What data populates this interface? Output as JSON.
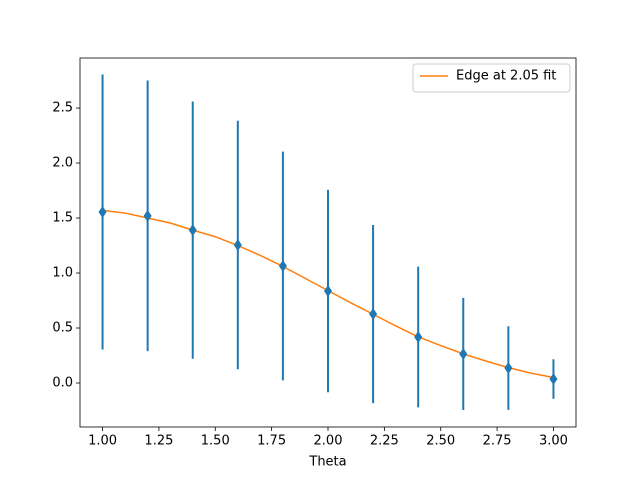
{
  "chart_data": {
    "type": "errorbar",
    "xlabel": "Theta",
    "xlim": [
      0.9,
      3.1
    ],
    "ylim": [
      -0.4,
      2.955
    ],
    "xticks": [
      {
        "value": 1.0,
        "label": "1.00"
      },
      {
        "value": 1.25,
        "label": "1.25"
      },
      {
        "value": 1.5,
        "label": "1.50"
      },
      {
        "value": 1.75,
        "label": "1.75"
      },
      {
        "value": 2.0,
        "label": "2.00"
      },
      {
        "value": 2.25,
        "label": "2.25"
      },
      {
        "value": 2.5,
        "label": "2.50"
      },
      {
        "value": 2.75,
        "label": "2.75"
      },
      {
        "value": 3.0,
        "label": "3.00"
      }
    ],
    "yticks": [
      {
        "value": 0,
        "label": "0.0"
      },
      {
        "value": 0.5,
        "label": "0.5"
      },
      {
        "value": 1.0,
        "label": "1.0"
      },
      {
        "value": 1.5,
        "label": "1.5"
      },
      {
        "value": 2.0,
        "label": "2.0"
      },
      {
        "value": 2.5,
        "label": "2.5"
      }
    ],
    "legend": "upper right",
    "series": [
      {
        "type": "errorbar",
        "color": "#1f77b4",
        "x": [
          1.0,
          1.2,
          1.4,
          1.6,
          1.8,
          2.0,
          2.2,
          2.4,
          2.6,
          2.8,
          3.0
        ],
        "values": [
          1.555,
          1.52,
          1.39,
          1.255,
          1.064,
          0.836,
          0.627,
          0.418,
          0.264,
          0.136,
          0.036
        ],
        "errors": [
          1.25,
          1.23,
          1.17,
          1.13,
          1.04,
          0.92,
          0.81,
          0.64,
          0.51,
          0.38,
          0.18
        ]
      },
      {
        "type": "line",
        "name": "Edge at 2.05 fit",
        "color": "#ff7f0e",
        "x": [
          1.0,
          1.1,
          1.2,
          1.3,
          1.4,
          1.5,
          1.6,
          1.7,
          1.8,
          1.9,
          2.0,
          2.1,
          2.2,
          2.3,
          2.4,
          2.5,
          2.6,
          2.7,
          2.8,
          2.9,
          3.0
        ],
        "values": [
          1.57,
          1.545,
          1.5,
          1.455,
          1.39,
          1.33,
          1.25,
          1.16,
          1.06,
          0.95,
          0.84,
          0.73,
          0.625,
          0.52,
          0.42,
          0.34,
          0.265,
          0.2,
          0.14,
          0.09,
          0.05
        ]
      }
    ]
  }
}
